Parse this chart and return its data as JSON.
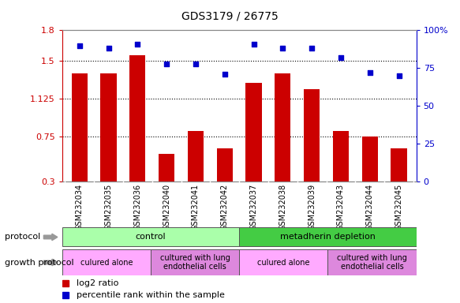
{
  "title": "GDS3179 / 26775",
  "samples": [
    "GSM232034",
    "GSM232035",
    "GSM232036",
    "GSM232040",
    "GSM232041",
    "GSM232042",
    "GSM232037",
    "GSM232038",
    "GSM232039",
    "GSM232043",
    "GSM232044",
    "GSM232045"
  ],
  "log2_ratio": [
    1.37,
    1.37,
    1.55,
    0.58,
    0.8,
    0.63,
    1.28,
    1.37,
    1.22,
    0.8,
    0.75,
    0.63
  ],
  "percentile_rank": [
    90,
    88,
    91,
    78,
    78,
    71,
    91,
    88,
    88,
    82,
    72,
    70
  ],
  "bar_color": "#cc0000",
  "dot_color": "#0000cc",
  "ylim_left": [
    0.3,
    1.8
  ],
  "ylim_right": [
    0,
    100
  ],
  "yticks_left": [
    0.3,
    0.75,
    1.125,
    1.5,
    1.8
  ],
  "ytick_labels_left": [
    "0.3",
    "0.75",
    "1.125",
    "1.5",
    "1.8"
  ],
  "yticks_right": [
    0,
    25,
    50,
    75,
    100
  ],
  "ytick_labels_right": [
    "0",
    "25",
    "50",
    "75",
    "100%"
  ],
  "hlines": [
    0.75,
    1.125,
    1.5
  ],
  "protocol_groups": [
    {
      "label": "control",
      "start": 0,
      "end": 6,
      "color": "#aaffaa"
    },
    {
      "label": "metadherin depletion",
      "start": 6,
      "end": 12,
      "color": "#44cc44"
    }
  ],
  "growth_groups": [
    {
      "label": "culured alone",
      "start": 0,
      "end": 3,
      "color": "#ffaaff"
    },
    {
      "label": "cultured with lung\nendothelial cells",
      "start": 3,
      "end": 6,
      "color": "#dd88dd"
    },
    {
      "label": "culured alone",
      "start": 6,
      "end": 9,
      "color": "#ffaaff"
    },
    {
      "label": "cultured with lung\nendothelial cells",
      "start": 9,
      "end": 12,
      "color": "#dd88dd"
    }
  ],
  "legend_items": [
    {
      "label": "log2 ratio",
      "color": "#cc0000"
    },
    {
      "label": "percentile rank within the sample",
      "color": "#0000cc"
    }
  ],
  "bar_width": 0.55,
  "background_color": "#ffffff",
  "xticklabel_color": "#000000",
  "left_axis_color": "#cc0000",
  "right_axis_color": "#0000cc",
  "xtick_gray": "#cccccc"
}
